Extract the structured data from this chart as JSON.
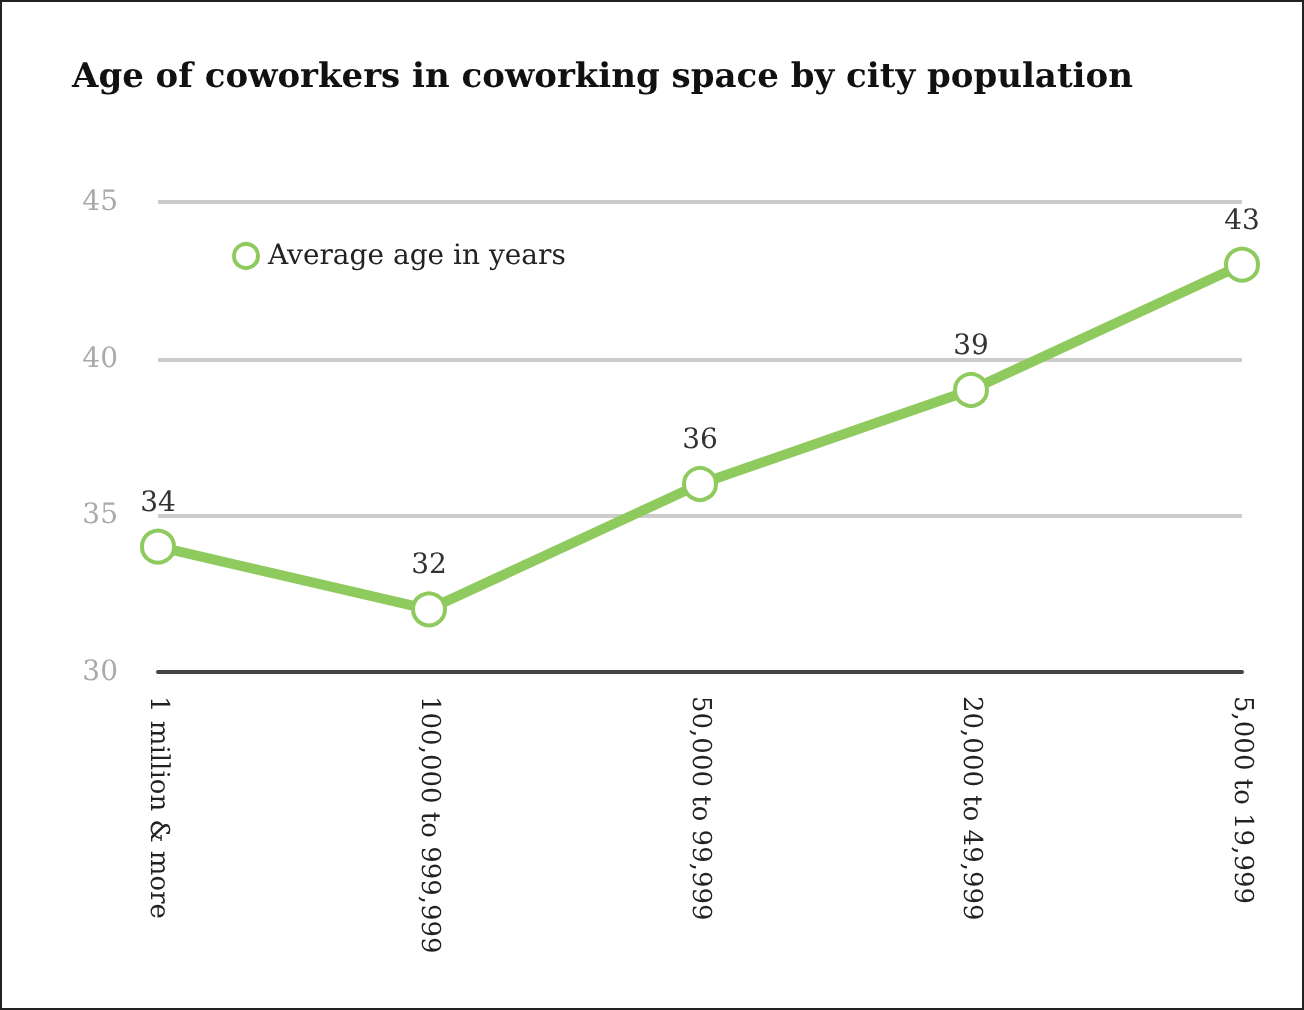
{
  "chart_data": {
    "type": "line",
    "title": "Age of coworkers in coworking space by city population",
    "categories": [
      "1 million & more",
      "100,000 to 999,999",
      "50,000 to 99,999",
      "20,000 to 49,999",
      "5,000 to 19,999"
    ],
    "series": [
      {
        "name": "Average age in years",
        "color": "#8fca5e",
        "values": [
          34,
          32,
          36,
          39,
          43
        ]
      }
    ],
    "ylim": [
      30,
      45
    ],
    "yticks": [
      30,
      35,
      40,
      45
    ],
    "grid": "y",
    "legend": "top left",
    "marker": "circle",
    "line_style": "solid",
    "data_labels": true
  }
}
